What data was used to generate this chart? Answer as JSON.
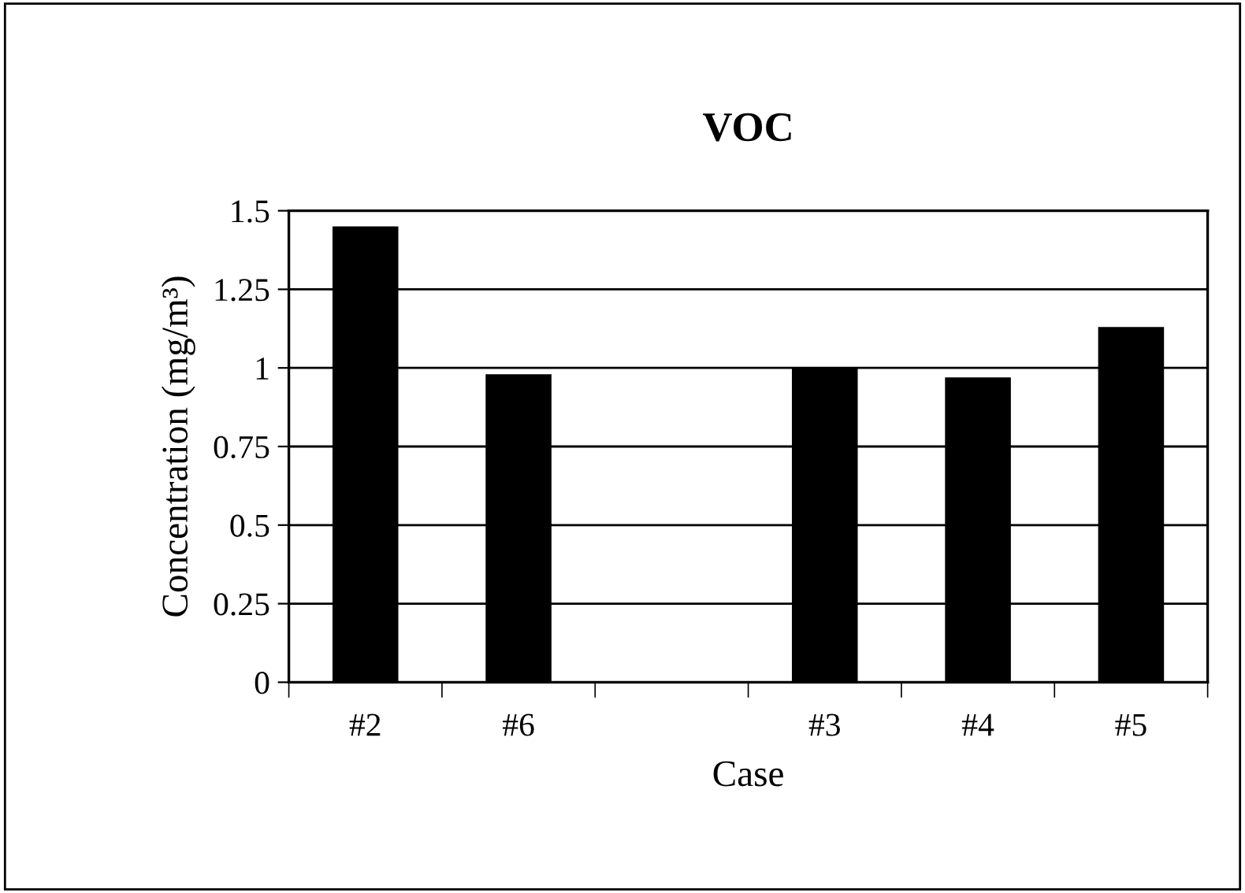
{
  "chart_data": {
    "type": "bar",
    "title": "VOC",
    "xlabel": "Case",
    "ylabel": "Concentration (mg/m³)",
    "categories": [
      "#2",
      "#6",
      null,
      "#3",
      "#4",
      "#5"
    ],
    "values": [
      1.45,
      0.98,
      null,
      1.0,
      0.97,
      1.13
    ],
    "color": "#000000",
    "ylim": [
      0,
      1.5
    ],
    "yticks": [
      0,
      0.25,
      0.5,
      0.75,
      1,
      1.25,
      1.5
    ],
    "grid": "y",
    "legend": false
  }
}
